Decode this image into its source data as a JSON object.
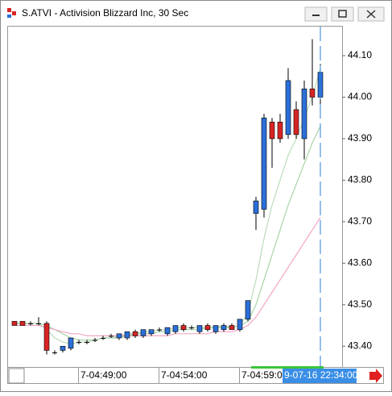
{
  "chart_data": {
    "type": "candlestick",
    "title": "S.ATVI - Activision Blizzard Inc, 30 Sec",
    "categories": [
      null,
      null,
      null,
      null,
      null,
      null,
      null,
      null,
      "7-04:49:00",
      null,
      null,
      null,
      null,
      null,
      null,
      null,
      null,
      null,
      "7-04:54:00",
      null,
      null,
      null,
      null,
      null,
      null,
      null,
      null,
      null,
      "7-04:59:0",
      null,
      null,
      null,
      null,
      null,
      null,
      null,
      null,
      null,
      null
    ],
    "cursor_label": "9-07-16 22:34:00",
    "up_color": "#2b6fd8",
    "down_color": "#d82424",
    "open": [
      43.46,
      43.46,
      43.455,
      43.455,
      43.455,
      43.385,
      43.39,
      43.395,
      43.41,
      43.41,
      43.415,
      43.42,
      43.425,
      43.42,
      43.42,
      43.435,
      43.425,
      43.43,
      43.44,
      43.43,
      43.435,
      43.45,
      43.445,
      43.435,
      43.45,
      43.435,
      43.44,
      43.45,
      43.44,
      43.465,
      43.72,
      43.73,
      43.94,
      43.94,
      43.91,
      43.97,
      43.9,
      44.02,
      44.0
    ],
    "high": [
      43.46,
      43.46,
      43.46,
      43.47,
      43.46,
      43.39,
      43.4,
      43.42,
      43.415,
      43.415,
      43.42,
      43.425,
      43.43,
      43.43,
      43.435,
      43.44,
      43.44,
      43.44,
      43.445,
      43.445,
      43.45,
      43.455,
      43.45,
      43.45,
      43.455,
      43.45,
      43.455,
      43.455,
      43.465,
      43.51,
      43.76,
      43.96,
      43.95,
      43.96,
      44.07,
      43.99,
      44.04,
      44.14,
      44.08
    ],
    "low": [
      43.45,
      43.45,
      43.45,
      43.45,
      43.38,
      43.38,
      43.385,
      43.39,
      43.405,
      43.405,
      43.41,
      43.415,
      43.42,
      43.415,
      43.415,
      43.42,
      43.42,
      43.425,
      43.435,
      43.425,
      43.43,
      43.435,
      43.44,
      43.43,
      43.435,
      43.43,
      43.435,
      43.44,
      43.435,
      43.46,
      43.68,
      43.71,
      43.83,
      43.89,
      43.9,
      43.9,
      43.85,
      43.98,
      43.98
    ],
    "close": [
      43.45,
      43.45,
      43.455,
      43.455,
      43.39,
      43.385,
      43.4,
      43.42,
      43.41,
      43.41,
      43.415,
      43.42,
      43.425,
      43.43,
      43.435,
      43.425,
      43.44,
      43.44,
      43.44,
      43.445,
      43.45,
      43.44,
      43.445,
      43.45,
      43.44,
      43.45,
      43.45,
      43.44,
      43.465,
      43.51,
      43.75,
      43.95,
      43.9,
      43.9,
      44.04,
      43.91,
      44.02,
      44.0,
      44.06
    ],
    "series": [
      {
        "color": "#bcdcbc",
        "values": [
          43.455,
          43.455,
          43.455,
          43.455,
          43.44,
          43.42,
          43.41,
          43.405,
          43.41,
          43.41,
          43.415,
          43.42,
          43.42,
          43.425,
          43.43,
          43.43,
          43.435,
          43.435,
          43.44,
          43.44,
          43.445,
          43.445,
          43.445,
          43.445,
          43.445,
          43.445,
          43.45,
          43.445,
          43.45,
          43.48,
          43.56,
          43.66,
          43.74,
          43.8,
          43.86,
          43.9,
          43.95,
          44.0,
          44.07
        ]
      },
      {
        "color": "#a8d4a8",
        "values": [
          43.455,
          43.455,
          43.455,
          43.455,
          43.45,
          43.44,
          43.43,
          43.42,
          43.415,
          43.415,
          43.415,
          43.42,
          43.42,
          43.42,
          43.425,
          43.43,
          43.43,
          43.43,
          43.435,
          43.435,
          43.44,
          43.44,
          43.44,
          43.44,
          43.445,
          43.445,
          43.445,
          43.445,
          43.45,
          43.46,
          43.5,
          43.56,
          43.62,
          43.68,
          43.74,
          43.79,
          43.84,
          43.89,
          43.93
        ]
      },
      {
        "color": "#f2a6c4",
        "values": [
          43.45,
          43.45,
          43.45,
          43.45,
          43.445,
          43.44,
          43.435,
          43.43,
          43.43,
          43.425,
          43.425,
          43.425,
          43.425,
          43.425,
          43.425,
          43.425,
          43.425,
          43.425,
          43.425,
          43.425,
          43.43,
          43.43,
          43.43,
          43.43,
          43.43,
          43.435,
          43.435,
          43.435,
          43.44,
          43.45,
          43.47,
          43.5,
          43.53,
          43.56,
          43.59,
          43.62,
          43.65,
          43.68,
          43.71
        ]
      }
    ],
    "ylim": [
      43.35,
      44.17
    ],
    "yticks": [
      {
        "value": 43.4,
        "label": "43.40"
      },
      {
        "value": 43.5,
        "label": "43.50"
      },
      {
        "value": 43.6,
        "label": "43.60"
      },
      {
        "value": 43.7,
        "label": "43.70"
      },
      {
        "value": 43.8,
        "label": "43.80"
      },
      {
        "value": 43.9,
        "label": "43.90"
      },
      {
        "value": 44.0,
        "label": "44.00"
      },
      {
        "value": 44.1,
        "label": "44.10"
      }
    ]
  }
}
